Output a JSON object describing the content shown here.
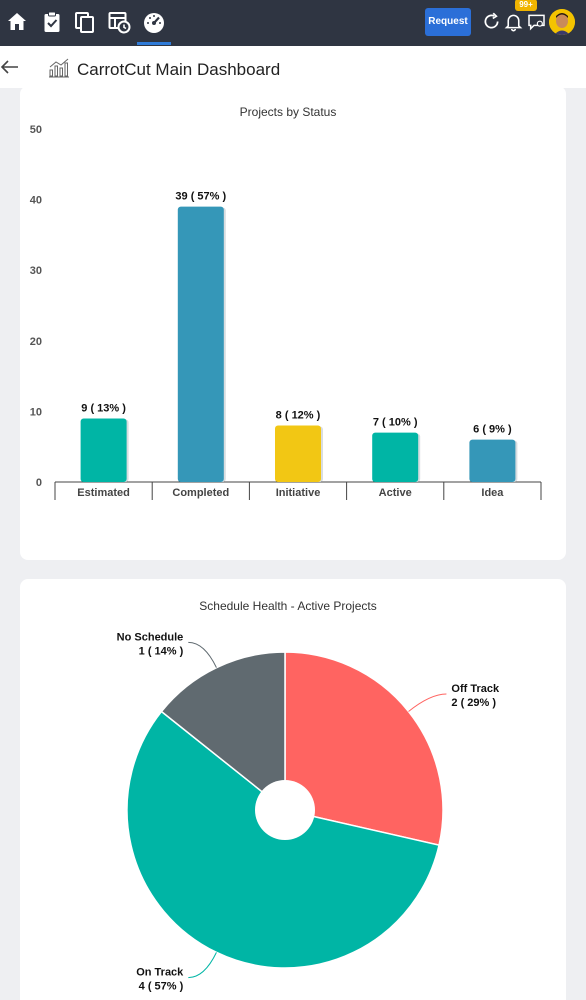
{
  "topbar": {
    "nav_icons": [
      "home-icon",
      "clipboard-check-icon",
      "copy-icon",
      "table-clock-icon",
      "speedometer-icon"
    ],
    "active_nav": "speedometer-icon",
    "request_label": "Request",
    "notification_count": "99+",
    "right_icons": [
      "refresh-icon",
      "bell-icon",
      "chat-icon",
      "avatar"
    ]
  },
  "header": {
    "title": "CarrotCut Main Dashboard"
  },
  "colors": {
    "topbar": "#2f3542",
    "teal": "#00b5a5",
    "blue": "#3597b8",
    "yellow": "#f2c714",
    "red": "#ff6461",
    "gray": "#606a70"
  },
  "chart_data": [
    {
      "type": "bar",
      "title": "Projects by Status",
      "categories": [
        "Estimated",
        "Completed",
        "Initiative",
        "Active",
        "Idea"
      ],
      "values": [
        9,
        39,
        8,
        7,
        6
      ],
      "data_labels": [
        "9 ( 13% )",
        "39 ( 57% )",
        "8 ( 12% )",
        "7 ( 10% )",
        "6 ( 9% )"
      ],
      "colors": [
        "#00b5a5",
        "#3597b8",
        "#f2c714",
        "#00b5a5",
        "#3597b8"
      ],
      "ylim": [
        0,
        50
      ],
      "yticks": [
        "0",
        "10",
        "20",
        "30",
        "40",
        "50"
      ],
      "yticks_values": [
        0,
        10,
        20,
        30,
        40,
        50
      ],
      "grid": false
    },
    {
      "type": "pie",
      "title": "Schedule Health - Active Projects",
      "donut": true,
      "slices": [
        {
          "name": "Off Track",
          "value": 2,
          "label": "2 ( 29% )",
          "color": "#ff6461"
        },
        {
          "name": "On Track",
          "value": 4,
          "label": "4 ( 57% )",
          "color": "#00b5a5"
        },
        {
          "name": "No Schedule",
          "value": 1,
          "label": "1 ( 14% )",
          "color": "#606a70"
        }
      ]
    }
  ]
}
